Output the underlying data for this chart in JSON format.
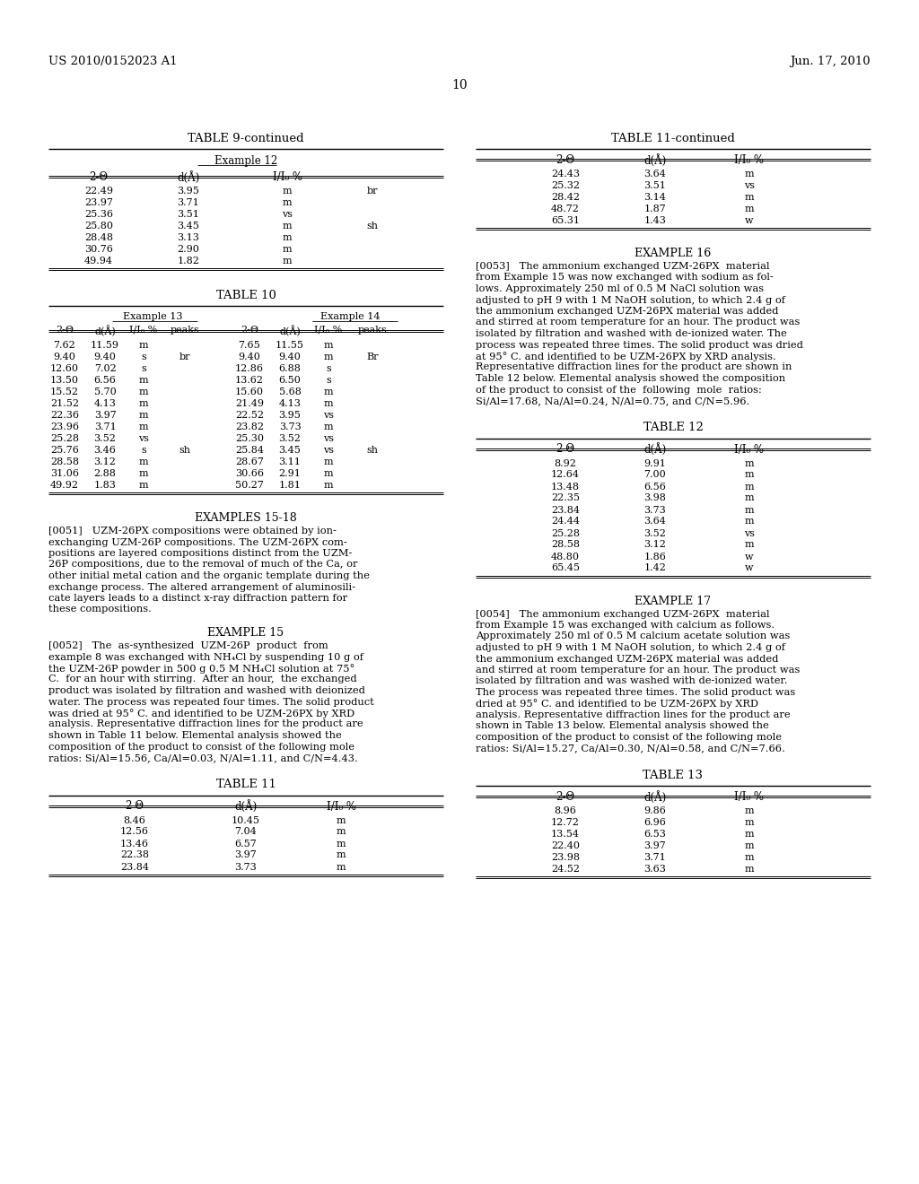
{
  "header_left": "US 2010/0152023 A1",
  "header_right": "Jun. 17, 2010",
  "page_num": "10",
  "bg_color": "#ffffff",
  "table9_continued_rows": [
    [
      "22.49",
      "3.95",
      "m",
      "br"
    ],
    [
      "23.97",
      "3.71",
      "m",
      ""
    ],
    [
      "25.36",
      "3.51",
      "vs",
      ""
    ],
    [
      "25.80",
      "3.45",
      "m",
      "sh"
    ],
    [
      "28.48",
      "3.13",
      "m",
      ""
    ],
    [
      "30.76",
      "2.90",
      "m",
      ""
    ],
    [
      "49.94",
      "1.82",
      "m",
      ""
    ]
  ],
  "table10_rows": [
    [
      "7.62",
      "11.59",
      "m",
      "",
      "7.65",
      "11.55",
      "m",
      ""
    ],
    [
      "9.40",
      "9.40",
      "s",
      "br",
      "9.40",
      "9.40",
      "m",
      "Br"
    ],
    [
      "12.60",
      "7.02",
      "s",
      "",
      "12.86",
      "6.88",
      "s",
      ""
    ],
    [
      "13.50",
      "6.56",
      "m",
      "",
      "13.62",
      "6.50",
      "s",
      ""
    ],
    [
      "15.52",
      "5.70",
      "m",
      "",
      "15.60",
      "5.68",
      "m",
      ""
    ],
    [
      "21.52",
      "4.13",
      "m",
      "",
      "21.49",
      "4.13",
      "m",
      ""
    ],
    [
      "22.36",
      "3.97",
      "m",
      "",
      "22.52",
      "3.95",
      "vs",
      ""
    ],
    [
      "23.96",
      "3.71",
      "m",
      "",
      "23.82",
      "3.73",
      "m",
      ""
    ],
    [
      "25.28",
      "3.52",
      "vs",
      "",
      "25.30",
      "3.52",
      "vs",
      ""
    ],
    [
      "25.76",
      "3.46",
      "s",
      "sh",
      "25.84",
      "3.45",
      "vs",
      "sh"
    ],
    [
      "28.58",
      "3.12",
      "m",
      "",
      "28.67",
      "3.11",
      "m",
      ""
    ],
    [
      "31.06",
      "2.88",
      "m",
      "",
      "30.66",
      "2.91",
      "m",
      ""
    ],
    [
      "49.92",
      "1.83",
      "m",
      "",
      "50.27",
      "1.81",
      "m",
      ""
    ]
  ],
  "para_0051_lines": [
    "[0051]   UZM-26PX compositions were obtained by ion-",
    "exchanging UZM-26P compositions. The UZM-26PX com-",
    "positions are layered compositions distinct from the UZM-",
    "26P compositions, due to the removal of much of the Ca, or",
    "other initial metal cation and the organic template during the",
    "exchange process. The altered arrangement of aluminosili-",
    "cate layers leads to a distinct x-ray diffraction pattern for",
    "these compositions."
  ],
  "para_0052_lines": [
    "[0052]   The  as-synthesized  UZM-26P  product  from",
    "example 8 was exchanged with NH₄Cl by suspending 10 g of",
    "the UZM-26P powder in 500 g 0.5 M NH₄Cl solution at 75°",
    "C.  for an hour with stirring.  After an hour,  the exchanged",
    "product was isolated by filtration and washed with deionized",
    "water. The process was repeated four times. The solid product",
    "was dried at 95° C. and identified to be UZM-26PX by XRD",
    "analysis. Representative diffraction lines for the product are",
    "shown in Table 11 below. Elemental analysis showed the",
    "composition of the product to consist of the following mole",
    "ratios: Si/Al=15.56, Ca/Al=0.03, N/Al=1.11, and C/N=4.43."
  ],
  "table11_rows": [
    [
      "8.46",
      "10.45",
      "m"
    ],
    [
      "12.56",
      "7.04",
      "m"
    ],
    [
      "13.46",
      "6.57",
      "m"
    ],
    [
      "22.38",
      "3.97",
      "m"
    ],
    [
      "23.84",
      "3.73",
      "m"
    ]
  ],
  "table11c_rows": [
    [
      "24.43",
      "3.64",
      "m"
    ],
    [
      "25.32",
      "3.51",
      "vs"
    ],
    [
      "28.42",
      "3.14",
      "m"
    ],
    [
      "48.72",
      "1.87",
      "m"
    ],
    [
      "65.31",
      "1.43",
      "w"
    ]
  ],
  "para_0053_lines": [
    "[0053]   The ammonium exchanged UZM-26PX  material",
    "from Example 15 was now exchanged with sodium as fol-",
    "lows. Approximately 250 ml of 0.5 M NaCl solution was",
    "adjusted to pH 9 with 1 M NaOH solution, to which 2.4 g of",
    "the ammonium exchanged UZM-26PX material was added",
    "and stirred at room temperature for an hour. The product was",
    "isolated by filtration and washed with de-ionized water. The",
    "process was repeated three times. The solid product was dried",
    "at 95° C. and identified to be UZM-26PX by XRD analysis.",
    "Representative diffraction lines for the product are shown in",
    "Table 12 below. Elemental analysis showed the composition",
    "of the product to consist of the  following  mole  ratios:",
    "Si/Al=17.68, Na/Al=0.24, N/Al=0.75, and C/N=5.96."
  ],
  "table12_rows": [
    [
      "8.92",
      "9.91",
      "m"
    ],
    [
      "12.64",
      "7.00",
      "m"
    ],
    [
      "13.48",
      "6.56",
      "m"
    ],
    [
      "22.35",
      "3.98",
      "m"
    ],
    [
      "23.84",
      "3.73",
      "m"
    ],
    [
      "24.44",
      "3.64",
      "m"
    ],
    [
      "25.28",
      "3.52",
      "vs"
    ],
    [
      "28.58",
      "3.12",
      "m"
    ],
    [
      "48.80",
      "1.86",
      "w"
    ],
    [
      "65.45",
      "1.42",
      "w"
    ]
  ],
  "para_0054_lines": [
    "[0054]   The ammonium exchanged UZM-26PX  material",
    "from Example 15 was exchanged with calcium as follows.",
    "Approximately 250 ml of 0.5 M calcium acetate solution was",
    "adjusted to pH 9 with 1 M NaOH solution, to which 2.4 g of",
    "the ammonium exchanged UZM-26PX material was added",
    "and stirred at room temperature for an hour. The product was",
    "isolated by filtration and was washed with de-ionized water.",
    "The process was repeated three times. The solid product was",
    "dried at 95° C. and identified to be UZM-26PX by XRD",
    "analysis. Representative diffraction lines for the product are",
    "shown in Table 13 below. Elemental analysis showed the",
    "composition of the product to consist of the following mole",
    "ratios: Si/Al=15.27, Ca/Al=0.30, N/Al=0.58, and C/N=7.66."
  ],
  "table13_rows": [
    [
      "8.96",
      "9.86",
      "m"
    ],
    [
      "12.72",
      "6.96",
      "m"
    ],
    [
      "13.54",
      "6.53",
      "m"
    ],
    [
      "22.40",
      "3.97",
      "m"
    ],
    [
      "23.98",
      "3.71",
      "m"
    ],
    [
      "24.52",
      "3.63",
      "m"
    ]
  ]
}
